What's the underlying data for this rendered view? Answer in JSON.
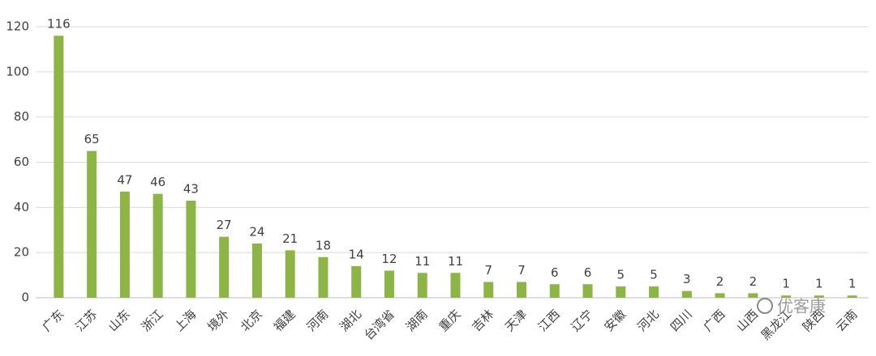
{
  "chart_data": {
    "type": "bar",
    "categories": [
      "广东",
      "江苏",
      "山东",
      "浙江",
      "上海",
      "境外",
      "北京",
      "福建",
      "河南",
      "湖北",
      "台湾省",
      "湖南",
      "重庆",
      "吉林",
      "天津",
      "江西",
      "辽宁",
      "安徽",
      "河北",
      "四川",
      "广西",
      "山西",
      "黑龙江",
      "陕西",
      "云南"
    ],
    "values": [
      116,
      65,
      47,
      46,
      43,
      27,
      24,
      21,
      18,
      14,
      12,
      11,
      11,
      7,
      7,
      6,
      6,
      5,
      5,
      3,
      2,
      2,
      1,
      1,
      1
    ],
    "color": "#8db545",
    "ylim": [
      0,
      120
    ],
    "yticks": [
      0,
      20,
      40,
      60,
      80,
      100,
      120
    ],
    "grid": true,
    "watermark": "优客康"
  }
}
